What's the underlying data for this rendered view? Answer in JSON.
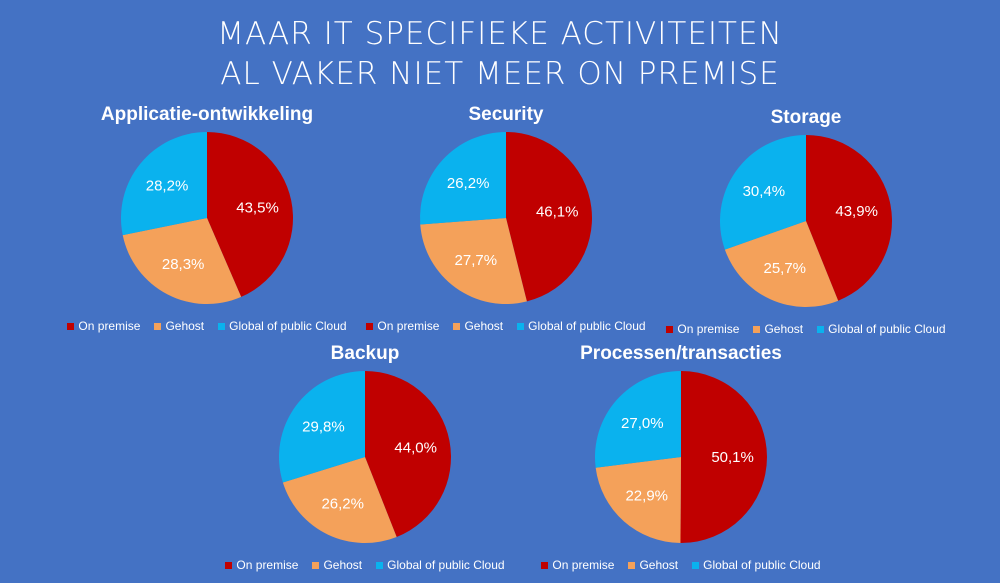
{
  "title": {
    "line1": "MAAR IT SPECIFIEKE ACTIVITEITEN",
    "line2": "AL VAKER NIET MEER ON PREMISE"
  },
  "colors": {
    "on_premise": "#c00000",
    "gehost": "#f4a15a",
    "cloud": "#0ab2ee"
  },
  "legend": [
    "On premise",
    "Gehost",
    "Global of public Cloud"
  ],
  "chart_data": [
    {
      "type": "pie",
      "title": "Applicatie-ontwikkeling",
      "categories": [
        "On premise",
        "Gehost",
        "Global of public Cloud"
      ],
      "values": [
        43.5,
        28.3,
        28.2
      ],
      "labels": [
        "43,5%",
        "28,3%",
        "28,2%"
      ]
    },
    {
      "type": "pie",
      "title": "Security",
      "categories": [
        "On premise",
        "Gehost",
        "Global of public Cloud"
      ],
      "values": [
        46.1,
        27.7,
        26.2
      ],
      "labels": [
        "46,1%",
        "27,7%",
        "26,2%"
      ]
    },
    {
      "type": "pie",
      "title": "Storage",
      "categories": [
        "On premise",
        "Gehost",
        "Global of public Cloud"
      ],
      "values": [
        43.9,
        25.7,
        30.4
      ],
      "labels": [
        "43,9%",
        "25,7%",
        "30,4%"
      ]
    },
    {
      "type": "pie",
      "title": "Backup",
      "categories": [
        "On premise",
        "Gehost",
        "Global of public Cloud"
      ],
      "values": [
        44.0,
        26.2,
        29.8
      ],
      "labels": [
        "44,0%",
        "26,2%",
        "29,8%"
      ]
    },
    {
      "type": "pie",
      "title": "Processen/transacties",
      "categories": [
        "On premise",
        "Gehost",
        "Global of public Cloud"
      ],
      "values": [
        50.1,
        22.9,
        27.0
      ],
      "labels": [
        "50,1%",
        "22,9%",
        "27,0%"
      ]
    }
  ]
}
